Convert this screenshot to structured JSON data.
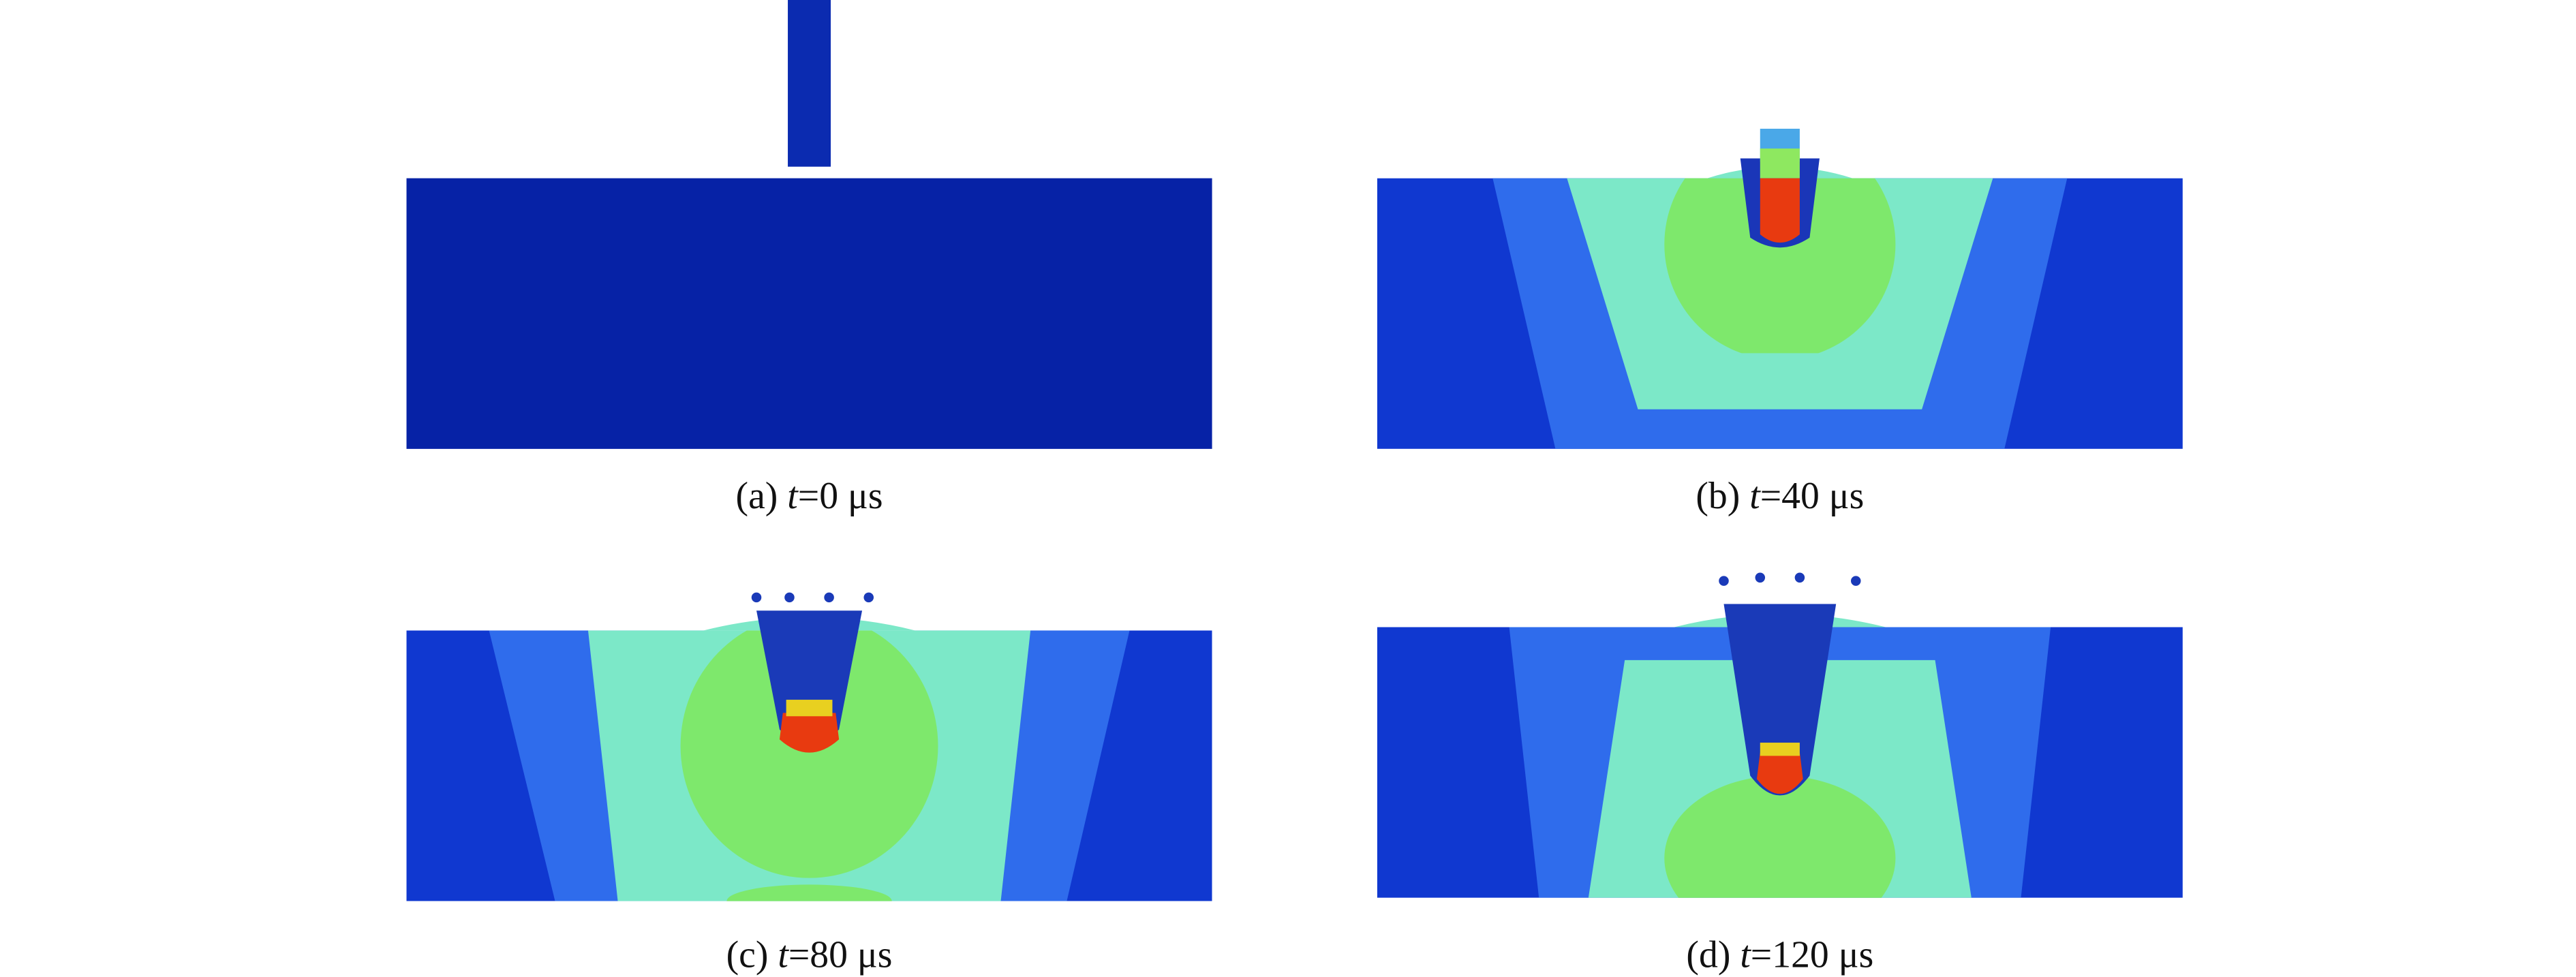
{
  "panels": [
    {
      "label": "(a)",
      "variable": "t",
      "time": "=0 μs"
    },
    {
      "label": "(b)",
      "variable": "t",
      "time": "=40 μs"
    },
    {
      "label": "(c)",
      "variable": "t",
      "time": "=80 μs"
    },
    {
      "label": "(d)",
      "variable": "t",
      "time": "=120 μs"
    }
  ]
}
